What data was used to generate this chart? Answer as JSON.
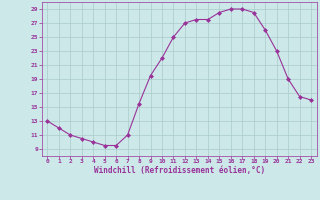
{
  "x": [
    0,
    1,
    2,
    3,
    4,
    5,
    6,
    7,
    8,
    9,
    10,
    11,
    12,
    13,
    14,
    15,
    16,
    17,
    18,
    19,
    20,
    21,
    22,
    23
  ],
  "y": [
    13,
    12,
    11,
    10.5,
    10,
    9.5,
    9.5,
    11,
    15.5,
    19.5,
    22,
    25,
    27,
    27.5,
    27.5,
    28.5,
    29,
    29,
    28.5,
    26,
    23,
    19,
    16.5,
    16
  ],
  "line_color": "#993399",
  "marker": "D",
  "marker_size": 2,
  "bg_color": "#cce8e8",
  "grid_color": "#aacccc",
  "xlabel": "Windchill (Refroidissement éolien,°C)",
  "xlabel_color": "#993399",
  "tick_color": "#993399",
  "ylim": [
    8,
    30
  ],
  "xlim": [
    -0.5,
    23.5
  ],
  "yticks": [
    9,
    11,
    13,
    15,
    17,
    19,
    21,
    23,
    25,
    27,
    29
  ],
  "xticks": [
    0,
    1,
    2,
    3,
    4,
    5,
    6,
    7,
    8,
    9,
    10,
    11,
    12,
    13,
    14,
    15,
    16,
    17,
    18,
    19,
    20,
    21,
    22,
    23
  ],
  "figsize": [
    3.2,
    2.0
  ],
  "dpi": 100
}
